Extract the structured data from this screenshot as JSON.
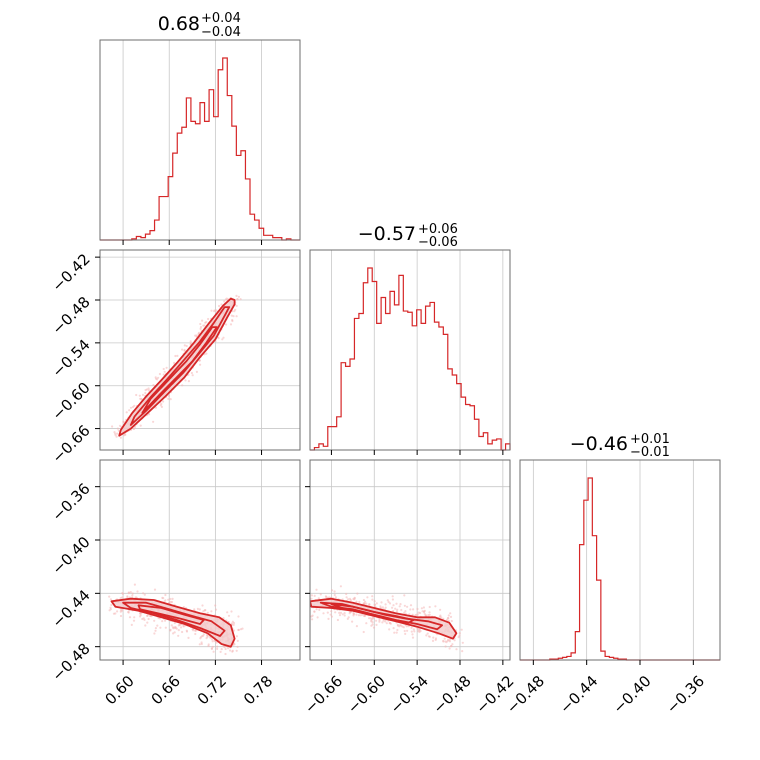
{
  "colors": {
    "accent": "#d62728",
    "scatter": "#f4b6b7",
    "contour_fill": "#f2c9ca",
    "grid": "#c8c8c8",
    "frame": "#6e6e6e"
  },
  "chart_data": {
    "type": "corner",
    "grid": true,
    "titles": [
      {
        "value": "0.68",
        "plus": "+0.04",
        "minus": "−0.04"
      },
      {
        "value": "−0.57",
        "plus": "+0.06",
        "minus": "−0.06"
      },
      {
        "value": "−0.46",
        "plus": "+0.01",
        "minus": "−0.01"
      }
    ],
    "params": [
      {
        "range": [
          0.57,
          0.83
        ],
        "ticks": [
          0.6,
          0.66,
          0.72,
          0.78
        ],
        "tick_labels": [
          "0.60",
          "0.66",
          "0.72",
          "0.78"
        ]
      },
      {
        "range": [
          -0.69,
          -0.41
        ],
        "ticks": [
          -0.66,
          -0.6,
          -0.54,
          -0.48,
          -0.42
        ],
        "tick_labels": [
          "−0.66",
          "−0.60",
          "−0.54",
          "−0.48",
          "−0.42"
        ]
      },
      {
        "range": [
          -0.49,
          -0.34
        ],
        "ticks": [
          -0.48,
          -0.44,
          -0.4,
          -0.36
        ],
        "tick_labels": [
          "−0.48",
          "−0.44",
          "−0.40",
          "−0.36"
        ]
      }
    ],
    "histograms": [
      {
        "param": 0,
        "edges_range": [
          0.57,
          0.83
        ],
        "counts": [
          0,
          0,
          0,
          0,
          0,
          0,
          0,
          1,
          3,
          2,
          5,
          8,
          17,
          37,
          37,
          54,
          74,
          91,
          96,
          121,
          101,
          99,
          117,
          101,
          128,
          105,
          145,
          155,
          123,
          97,
          72,
          76,
          52,
          22,
          17,
          10,
          4,
          4,
          2,
          2,
          0,
          1,
          0,
          0
        ]
      },
      {
        "param": 1,
        "edges_range": [
          -0.69,
          -0.41
        ],
        "counts": [
          0,
          2,
          5,
          3,
          19,
          19,
          27,
          71,
          68,
          74,
          107,
          111,
          136,
          148,
          137,
          103,
          124,
          111,
          129,
          118,
          142,
          113,
          112,
          101,
          114,
          103,
          117,
          120,
          104,
          100,
          94,
          66,
          61,
          54,
          43,
          37,
          36,
          25,
          11,
          14,
          5,
          8,
          9,
          0,
          5
        ]
      },
      {
        "param": 2,
        "edges_range": [
          -0.49,
          -0.34
        ],
        "counts": [
          0,
          0,
          0,
          0,
          0,
          0,
          0,
          1,
          1,
          2,
          3,
          4,
          8,
          32,
          130,
          180,
          205,
          140,
          90,
          10,
          4,
          3,
          2,
          1,
          1,
          0,
          0,
          0,
          0,
          0,
          0,
          0,
          0,
          0,
          0,
          0,
          0,
          0,
          0,
          0,
          0,
          0,
          0,
          0,
          0,
          0,
          0
        ]
      }
    ],
    "pairs": [
      {
        "x_param": 0,
        "y_param": 1,
        "description_points": [
          [
            0.58,
            -0.672
          ],
          [
            0.6,
            -0.652
          ],
          [
            0.63,
            -0.625
          ],
          [
            0.66,
            -0.597
          ],
          [
            0.69,
            -0.567
          ],
          [
            0.71,
            -0.538
          ],
          [
            0.73,
            -0.505
          ],
          [
            0.74,
            -0.485
          ]
        ],
        "contours": [
          [
            [
              0.595,
              -0.67
            ],
            [
              0.61,
              -0.66
            ],
            [
              0.63,
              -0.64
            ],
            [
              0.655,
              -0.615
            ],
            [
              0.68,
              -0.588
            ],
            [
              0.7,
              -0.56
            ],
            [
              0.72,
              -0.535
            ],
            [
              0.735,
              -0.505
            ],
            [
              0.745,
              -0.486
            ],
            [
              0.745,
              -0.48
            ],
            [
              0.74,
              -0.478
            ],
            [
              0.73,
              -0.488
            ],
            [
              0.712,
              -0.512
            ],
            [
              0.692,
              -0.54
            ],
            [
              0.67,
              -0.568
            ],
            [
              0.65,
              -0.592
            ],
            [
              0.63,
              -0.615
            ],
            [
              0.612,
              -0.638
            ],
            [
              0.597,
              -0.662
            ]
          ],
          [
            [
              0.61,
              -0.655
            ],
            [
              0.63,
              -0.635
            ],
            [
              0.655,
              -0.607
            ],
            [
              0.678,
              -0.582
            ],
            [
              0.698,
              -0.556
            ],
            [
              0.718,
              -0.53
            ],
            [
              0.733,
              -0.5
            ],
            [
              0.738,
              -0.49
            ],
            [
              0.732,
              -0.49
            ],
            [
              0.718,
              -0.512
            ],
            [
              0.7,
              -0.538
            ],
            [
              0.68,
              -0.563
            ],
            [
              0.658,
              -0.59
            ],
            [
              0.635,
              -0.617
            ],
            [
              0.615,
              -0.643
            ]
          ],
          [
            [
              0.625,
              -0.638
            ],
            [
              0.648,
              -0.612
            ],
            [
              0.67,
              -0.588
            ],
            [
              0.69,
              -0.566
            ],
            [
              0.708,
              -0.54
            ],
            [
              0.722,
              -0.518
            ],
            [
              0.716,
              -0.518
            ],
            [
              0.7,
              -0.542
            ],
            [
              0.682,
              -0.566
            ],
            [
              0.66,
              -0.591
            ],
            [
              0.636,
              -0.618
            ]
          ]
        ]
      },
      {
        "x_param": 0,
        "y_param": 2,
        "contours": [
          [
            [
              0.585,
              -0.446
            ],
            [
              0.61,
              -0.444
            ],
            [
              0.64,
              -0.445
            ],
            [
              0.67,
              -0.45
            ],
            [
              0.7,
              -0.455
            ],
            [
              0.725,
              -0.458
            ],
            [
              0.74,
              -0.464
            ],
            [
              0.745,
              -0.474
            ],
            [
              0.74,
              -0.48
            ],
            [
              0.728,
              -0.478
            ],
            [
              0.71,
              -0.47
            ],
            [
              0.68,
              -0.463
            ],
            [
              0.65,
              -0.458
            ],
            [
              0.62,
              -0.453
            ],
            [
              0.59,
              -0.45
            ]
          ],
          [
            [
              0.6,
              -0.447
            ],
            [
              0.63,
              -0.447
            ],
            [
              0.66,
              -0.452
            ],
            [
              0.69,
              -0.457
            ],
            [
              0.715,
              -0.461
            ],
            [
              0.732,
              -0.468
            ],
            [
              0.726,
              -0.472
            ],
            [
              0.7,
              -0.466
            ],
            [
              0.67,
              -0.46
            ],
            [
              0.64,
              -0.455
            ],
            [
              0.61,
              -0.451
            ]
          ],
          [
            [
              0.62,
              -0.449
            ],
            [
              0.65,
              -0.451
            ],
            [
              0.68,
              -0.456
            ],
            [
              0.705,
              -0.46
            ],
            [
              0.7,
              -0.463
            ],
            [
              0.675,
              -0.459
            ],
            [
              0.645,
              -0.455
            ],
            [
              0.622,
              -0.452
            ]
          ]
        ]
      },
      {
        "x_param": 1,
        "y_param": 2,
        "contours": [
          [
            [
              -0.69,
              -0.446
            ],
            [
              -0.66,
              -0.444
            ],
            [
              -0.63,
              -0.447
            ],
            [
              -0.6,
              -0.451
            ],
            [
              -0.57,
              -0.455
            ],
            [
              -0.54,
              -0.458
            ],
            [
              -0.515,
              -0.458
            ],
            [
              -0.495,
              -0.462
            ],
            [
              -0.485,
              -0.47
            ],
            [
              -0.49,
              -0.474
            ],
            [
              -0.51,
              -0.47
            ],
            [
              -0.54,
              -0.465
            ],
            [
              -0.57,
              -0.461
            ],
            [
              -0.6,
              -0.457
            ],
            [
              -0.63,
              -0.453
            ],
            [
              -0.66,
              -0.451
            ],
            [
              -0.688,
              -0.45
            ]
          ],
          [
            [
              -0.675,
              -0.447
            ],
            [
              -0.645,
              -0.448
            ],
            [
              -0.615,
              -0.452
            ],
            [
              -0.585,
              -0.456
            ],
            [
              -0.555,
              -0.459
            ],
            [
              -0.525,
              -0.461
            ],
            [
              -0.505,
              -0.464
            ],
            [
              -0.512,
              -0.467
            ],
            [
              -0.54,
              -0.463
            ],
            [
              -0.57,
              -0.46
            ],
            [
              -0.6,
              -0.456
            ],
            [
              -0.63,
              -0.452
            ],
            [
              -0.66,
              -0.45
            ]
          ],
          [
            [
              -0.66,
              -0.448
            ],
            [
              -0.63,
              -0.45
            ],
            [
              -0.6,
              -0.454
            ],
            [
              -0.57,
              -0.457
            ],
            [
              -0.545,
              -0.46
            ],
            [
              -0.552,
              -0.462
            ],
            [
              -0.58,
              -0.459
            ],
            [
              -0.61,
              -0.455
            ],
            [
              -0.64,
              -0.452
            ]
          ]
        ]
      }
    ]
  }
}
